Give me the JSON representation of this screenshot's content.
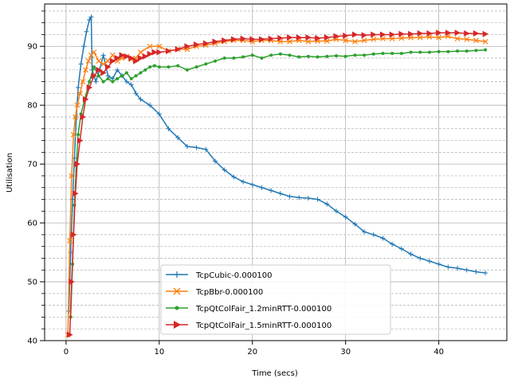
{
  "chart_data": {
    "type": "line",
    "xlabel": "Time (secs)",
    "ylabel": "Utilisation",
    "xlim": [
      -2.3,
      47.3
    ],
    "ylim": [
      40,
      97.2
    ],
    "x_ticks": [
      0,
      10,
      20,
      30,
      40
    ],
    "y_ticks": [
      40,
      50,
      60,
      70,
      80,
      90
    ],
    "y_minor_step": 2,
    "grid": true,
    "legend_position": "lower-center",
    "series": [
      {
        "name": "TcpCubic-0.000100",
        "color": "#1f77b4",
        "marker": "plus",
        "x": [
          0.3,
          0.5,
          0.7,
          0.9,
          1.1,
          1.3,
          1.6,
          1.9,
          2.2,
          2.5,
          2.7,
          2.8,
          3.2,
          3.6,
          4.0,
          4.5,
          5.0,
          5.5,
          6.0,
          6.5,
          7.0,
          7.5,
          8.0,
          9.0,
          10.0,
          11.0,
          12.0,
          13.0,
          14.0,
          15.0,
          16.0,
          17.0,
          18.0,
          19.0,
          20.0,
          21.0,
          22.0,
          23.0,
          24.0,
          25.0,
          26.0,
          27.0,
          28.0,
          29.0,
          30.0,
          31.0,
          32.0,
          33.0,
          34.0,
          35.0,
          36.0,
          37.0,
          38.0,
          39.0,
          40.0,
          41.0,
          42.0,
          43.0,
          44.0,
          45.0
        ],
        "y": [
          45,
          55,
          64,
          71,
          78,
          83,
          87,
          90,
          92.5,
          94.5,
          95,
          86,
          84,
          86,
          88.5,
          85,
          84.5,
          86,
          85,
          84,
          83.5,
          82,
          81,
          80,
          78.5,
          76,
          74.5,
          73,
          72.8,
          72.5,
          70.5,
          69,
          67.8,
          67,
          66.5,
          66,
          65.5,
          65,
          64.5,
          64.3,
          64.2,
          64,
          63.2,
          62,
          61,
          59.8,
          58.5,
          58,
          57.4,
          56.4,
          55.6,
          54.7,
          54,
          53.5,
          53,
          52.5,
          52.3,
          52,
          51.7,
          51.5
        ]
      },
      {
        "name": "TcpBbr-0.000100",
        "color": "#ff7f0e",
        "marker": "x",
        "x": [
          0.2,
          0.4,
          0.6,
          0.8,
          1.0,
          1.2,
          1.5,
          1.8,
          2.1,
          2.4,
          2.7,
          3.0,
          3.5,
          4.0,
          4.5,
          5.0,
          5.5,
          6.0,
          6.5,
          7.0,
          7.5,
          8.0,
          9.0,
          10.0,
          11.0,
          12.0,
          13.0,
          14.0,
          15.0,
          16.0,
          17.0,
          18.0,
          19.0,
          20.0,
          21.0,
          22.0,
          23.0,
          24.0,
          25.0,
          26.0,
          27.0,
          28.0,
          29.0,
          30.0,
          31.0,
          32.0,
          33.0,
          34.0,
          35.0,
          36.0,
          37.0,
          38.0,
          39.0,
          40.0,
          41.0,
          42.0,
          43.0,
          44.0,
          45.0
        ],
        "y": [
          41,
          57,
          68,
          75,
          78,
          80,
          82,
          84,
          86,
          87.5,
          88.5,
          89,
          87.5,
          87,
          87.5,
          88.5,
          87.5,
          88,
          88.3,
          87.8,
          88,
          89,
          90,
          90,
          89.2,
          89.5,
          89.5,
          90,
          90.2,
          90.5,
          90.8,
          91,
          91,
          90.8,
          91,
          91,
          90.8,
          90.8,
          91,
          90.8,
          90.9,
          90.9,
          91.2,
          91,
          90.8,
          91,
          91.2,
          91.3,
          91.3,
          91.4,
          91.5,
          91.5,
          91.6,
          91.5,
          91.7,
          91.3,
          91.2,
          91,
          90.8
        ]
      },
      {
        "name": "TcpQtColFair_1.2minRTT-0.000100",
        "color": "#2ca02c",
        "marker": "dot",
        "x": [
          0.5,
          0.7,
          0.9,
          1.1,
          1.3,
          1.6,
          2.0,
          2.5,
          3.0,
          3.5,
          4.0,
          4.5,
          5.0,
          5.5,
          6.0,
          6.5,
          7.0,
          7.5,
          8.0,
          8.5,
          9.0,
          9.5,
          10.0,
          11.0,
          12.0,
          13.0,
          14.0,
          15.0,
          16.0,
          17.0,
          18.0,
          19.0,
          20.0,
          21.0,
          22.0,
          23.0,
          24.0,
          25.0,
          26.0,
          27.0,
          28.0,
          29.0,
          30.0,
          31.0,
          32.0,
          33.0,
          34.0,
          35.0,
          36.0,
          37.0,
          38.0,
          39.0,
          40.0,
          41.0,
          42.0,
          43.0,
          44.0,
          45.0
        ],
        "y": [
          44,
          53,
          63,
          70,
          75,
          78.5,
          81,
          84,
          86.5,
          85,
          84,
          84.5,
          84,
          84.5,
          85,
          85.5,
          84.5,
          85,
          85.5,
          86,
          86.5,
          86.7,
          86.5,
          86.5,
          86.7,
          86,
          86.5,
          87,
          87.5,
          88,
          88,
          88.2,
          88.5,
          88,
          88.5,
          88.7,
          88.5,
          88.2,
          88.3,
          88.2,
          88.3,
          88.4,
          88.3,
          88.5,
          88.5,
          88.7,
          88.8,
          88.8,
          88.8,
          89,
          89,
          89,
          89.1,
          89.1,
          89.2,
          89.2,
          89.3,
          89.4
        ]
      },
      {
        "name": "TcpQtColFair_1.5minRTT-0.000100",
        "color": "#d62728",
        "marker": "triangle-right",
        "x": [
          0.4,
          0.6,
          0.8,
          1.0,
          1.2,
          1.5,
          1.8,
          2.1,
          2.5,
          3.0,
          3.5,
          4.0,
          4.5,
          5.0,
          5.5,
          6.0,
          6.5,
          7.0,
          7.5,
          8.0,
          8.5,
          9.0,
          9.5,
          10.0,
          11.0,
          12.0,
          13.0,
          14.0,
          15.0,
          16.0,
          17.0,
          18.0,
          19.0,
          20.0,
          21.0,
          22.0,
          23.0,
          24.0,
          25.0,
          26.0,
          27.0,
          28.0,
          29.0,
          30.0,
          31.0,
          32.0,
          33.0,
          34.0,
          35.0,
          36.0,
          37.0,
          38.0,
          39.0,
          40.0,
          41.0,
          42.0,
          43.0,
          44.0,
          45.0
        ],
        "y": [
          41,
          50,
          58,
          65,
          70,
          74,
          78,
          81,
          83,
          85,
          86,
          85.5,
          86.5,
          87.5,
          88,
          88.5,
          88.3,
          88,
          87.5,
          88,
          88.3,
          88.7,
          89,
          89,
          89.2,
          89.5,
          90,
          90.3,
          90.5,
          90.8,
          91,
          91.2,
          91.3,
          91.2,
          91.2,
          91.3,
          91.4,
          91.5,
          91.5,
          91.5,
          91.4,
          91.5,
          91.7,
          91.8,
          92,
          91.9,
          92,
          92,
          92,
          92.1,
          92.1,
          92.2,
          92.2,
          92.3,
          92.3,
          92.3,
          92.2,
          92.2,
          92.1
        ]
      }
    ]
  }
}
